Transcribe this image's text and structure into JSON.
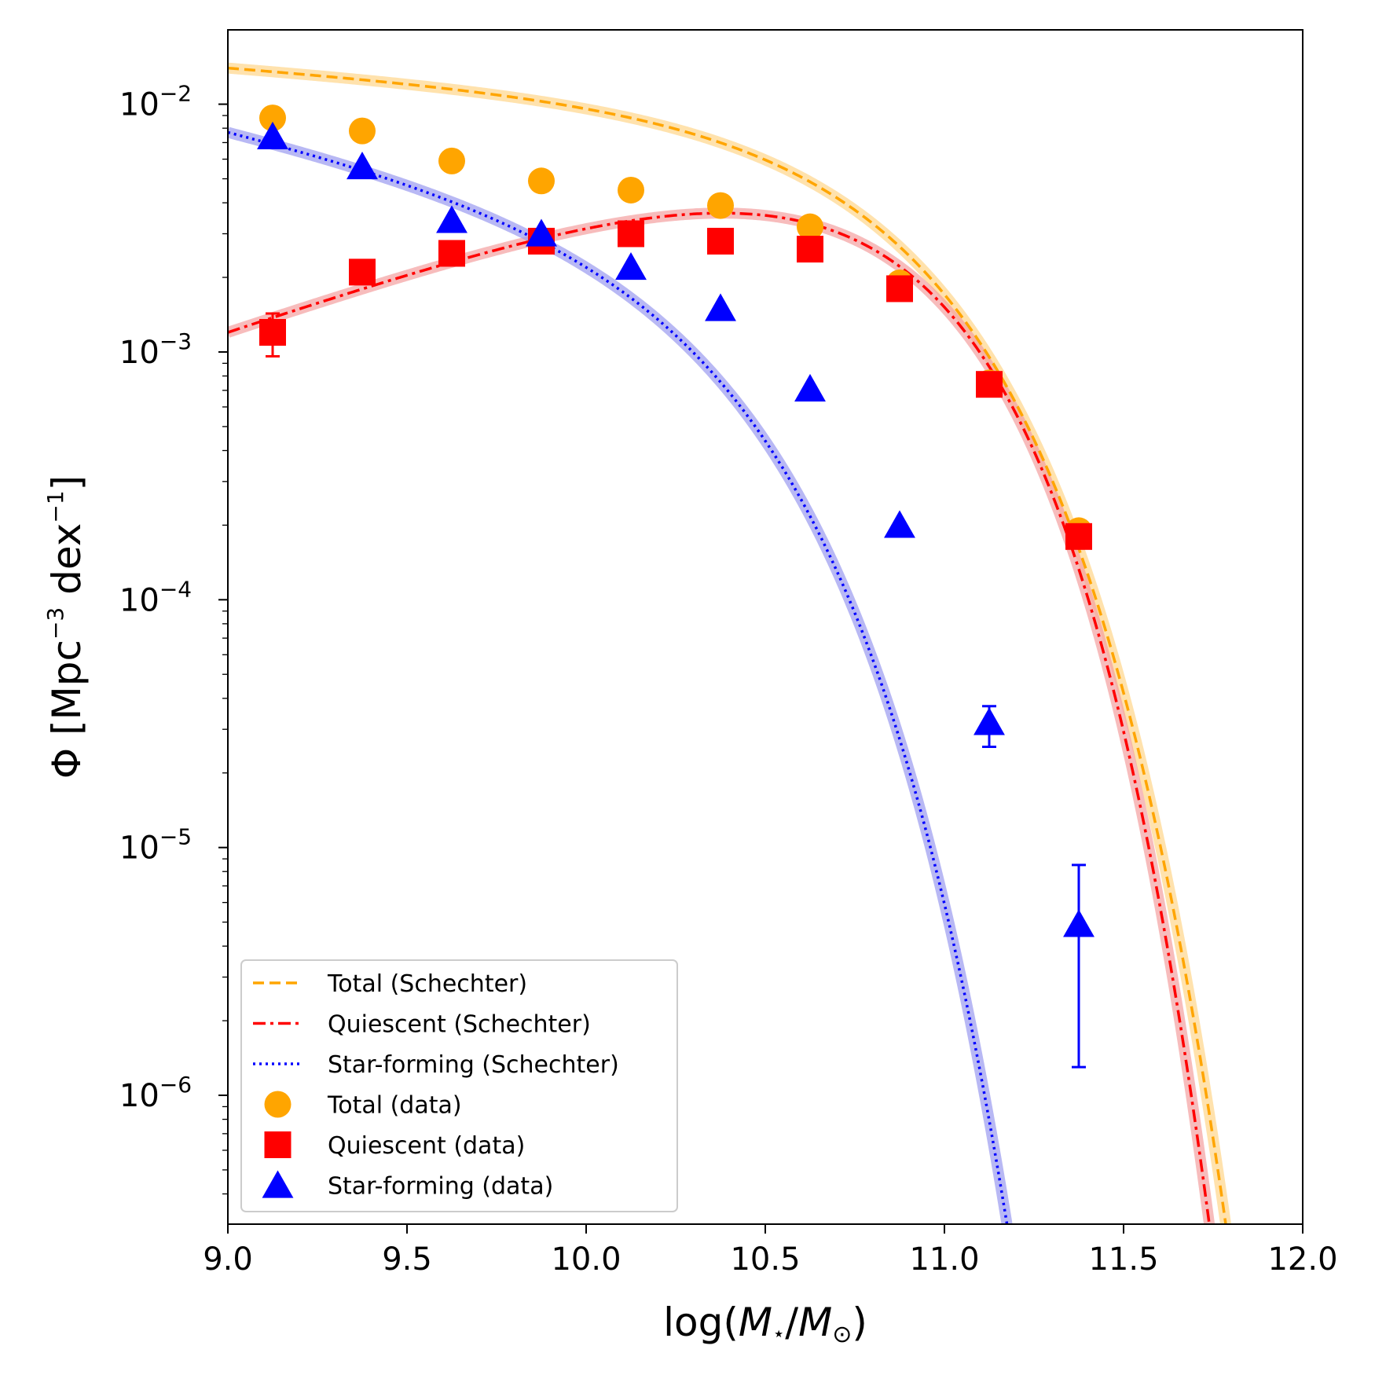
{
  "chart_data": {
    "type": "scatter",
    "xlabel": "log(M⋆/M⊙)",
    "xlabel_parts": {
      "prefix": "log(",
      "m": "M",
      "star": "⋆",
      "slash": "/",
      "m2": "M",
      "sun": "⊙",
      "suffix": ")"
    },
    "ylabel": "Φ [Mpc⁻³ dex⁻¹]",
    "ylabel_parts": {
      "phi": "Φ [Mpc",
      "exp1": "−3",
      "mid": " dex",
      "exp2": "−1",
      "end": "]"
    },
    "xlim": [
      9.0,
      12.0
    ],
    "ylim_log10": [
      -6.52,
      -1.7
    ],
    "yscale": "log",
    "x_ticks": [
      "9.0",
      "9.5",
      "10.0",
      "10.5",
      "11.0",
      "11.5",
      "12.0"
    ],
    "y_ticks": [
      {
        "exp": -2,
        "base": "10",
        "sup": "−2"
      },
      {
        "exp": -3,
        "base": "10",
        "sup": "−3"
      },
      {
        "exp": -4,
        "base": "10",
        "sup": "−4"
      },
      {
        "exp": -5,
        "base": "10",
        "sup": "−5"
      },
      {
        "exp": -6,
        "base": "10",
        "sup": "−6"
      }
    ],
    "fits": [
      {
        "name": "Total (Schechter)",
        "color": "#FFA500",
        "dash": "14 7",
        "band": "#FFD58A",
        "log_mstar": 10.78,
        "alpha": -1.1,
        "phi_star": 0.0041
      },
      {
        "name": "Quiescent (Schechter)",
        "color": "#FF0000",
        "dash": "16 6 4 6",
        "band": "#F4A0A0",
        "log_mstar": 10.68,
        "alpha": -0.5,
        "phi_star": 0.00368
      },
      {
        "name": "Star-forming (Schechter)",
        "color": "#0000FF",
        "dash": "3 5",
        "band": "#9A9AF0",
        "log_mstar": 10.24,
        "alpha": -1.32,
        "phi_star": 0.00142
      }
    ],
    "series": [
      {
        "name": "Total (data)",
        "marker": "circle",
        "color": "#FFA500",
        "x": [
          9.125,
          9.375,
          9.625,
          9.875,
          10.125,
          10.375,
          10.625,
          10.875,
          11.125,
          11.375
        ],
        "y": [
          0.0088,
          0.0078,
          0.0059,
          0.0049,
          0.0045,
          0.0039,
          0.0032,
          0.0019,
          0.00075,
          0.00019
        ],
        "err_low": [
          null,
          null,
          null,
          null,
          null,
          null,
          null,
          null,
          null,
          null
        ],
        "err_high": [
          null,
          null,
          null,
          null,
          null,
          null,
          null,
          null,
          null,
          null
        ]
      },
      {
        "name": "Quiescent (data)",
        "marker": "square",
        "color": "#FF0000",
        "x": [
          9.125,
          9.375,
          9.625,
          9.875,
          10.125,
          10.375,
          10.625,
          10.875,
          11.125,
          11.375
        ],
        "y": [
          0.0012,
          0.0021,
          0.0025,
          0.0028,
          0.003,
          0.0028,
          0.0026,
          0.0018,
          0.00074,
          0.00018
        ],
        "err_low": [
          0.00096,
          null,
          null,
          null,
          null,
          null,
          null,
          null,
          null,
          null
        ],
        "err_high": [
          0.00143,
          null,
          null,
          null,
          null,
          null,
          null,
          null,
          null,
          null
        ]
      },
      {
        "name": "Star-forming (data)",
        "marker": "triangle",
        "color": "#0000FF",
        "x": [
          9.125,
          9.375,
          9.625,
          9.875,
          10.125,
          10.375,
          10.625,
          10.875,
          11.125,
          11.375
        ],
        "y": [
          0.0074,
          0.0056,
          0.0034,
          0.003,
          0.0022,
          0.0015,
          0.00071,
          0.0002,
          3.2e-05,
          4.9e-06
        ],
        "err_low": [
          null,
          null,
          null,
          null,
          null,
          null,
          null,
          null,
          2.55e-05,
          1.3e-06
        ],
        "err_high": [
          null,
          null,
          null,
          null,
          null,
          null,
          null,
          null,
          3.72e-05,
          8.5e-06
        ]
      }
    ],
    "legend": {
      "location": "lower-left",
      "entries": [
        {
          "label": "Total (Schechter)",
          "type": "line",
          "color": "#FFA500",
          "dash": "14 7"
        },
        {
          "label": "Quiescent (Schechter)",
          "type": "line",
          "color": "#FF0000",
          "dash": "16 6 4 6"
        },
        {
          "label": "Star-forming (Schechter)",
          "type": "line",
          "color": "#0000FF",
          "dash": "3 5"
        },
        {
          "label": "Total (data)",
          "type": "marker",
          "marker": "circle",
          "color": "#FFA500"
        },
        {
          "label": "Quiescent (data)",
          "type": "marker",
          "marker": "square",
          "color": "#FF0000"
        },
        {
          "label": "Star-forming (data)",
          "type": "marker",
          "marker": "triangle",
          "color": "#0000FF"
        }
      ]
    }
  }
}
